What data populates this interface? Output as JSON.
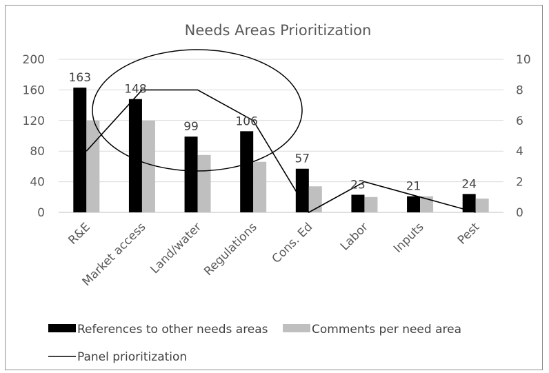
{
  "chart_data": {
    "type": "bar",
    "title": "Needs Areas Prioritization",
    "categories": [
      "R&E",
      "Market access",
      "Land/water",
      "Regulations",
      "Cons. Ed",
      "Labor",
      "Inputs",
      "Pest"
    ],
    "series": [
      {
        "name": "References to other needs areas",
        "type": "bar",
        "axis": "left",
        "color": "#000000",
        "values": [
          163,
          148,
          99,
          106,
          57,
          23,
          21,
          24
        ],
        "data_labels": true
      },
      {
        "name": "Comments per need area",
        "type": "bar",
        "axis": "left",
        "color": "#bfbfbf",
        "values": [
          120,
          120,
          75,
          66,
          34,
          20,
          21,
          18
        ],
        "data_labels": false
      },
      {
        "name": "Panel prioritization",
        "type": "line",
        "axis": "right",
        "color": "#000000",
        "values": [
          4,
          8,
          8,
          6,
          0,
          2,
          1,
          0
        ]
      }
    ],
    "y_left": {
      "min": 0,
      "max": 200,
      "ticks": [
        "0",
        "40",
        "80",
        "120",
        "160",
        "200"
      ]
    },
    "y_right": {
      "min": 0,
      "max": 10,
      "ticks": [
        "0",
        "2",
        "4",
        "6",
        "8",
        "10"
      ]
    },
    "grid": true,
    "legend_position": "bottom",
    "annotations": [
      {
        "type": "ellipse",
        "encloses": [
          "Market access",
          "Land/water",
          "Regulations"
        ]
      }
    ]
  }
}
